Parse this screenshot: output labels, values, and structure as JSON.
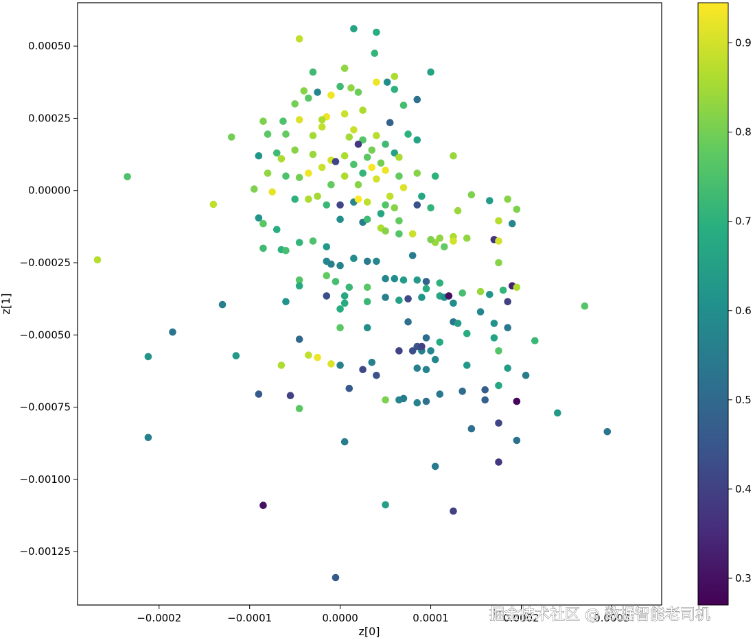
{
  "chart_data": {
    "type": "scatter",
    "xlabel": "z[0]",
    "ylabel": "z[1]",
    "xlim": [
      -0.00029,
      0.000355
    ],
    "ylim": [
      -0.001435,
      0.00065
    ],
    "xticks": [
      {
        "value": -0.0002,
        "label": "−0.0002"
      },
      {
        "value": -0.0001,
        "label": "−0.0001"
      },
      {
        "value": 0.0,
        "label": "0.0000"
      },
      {
        "value": 0.0001,
        "label": "0.0001"
      },
      {
        "value": 0.0002,
        "label": "0.0002"
      },
      {
        "value": 0.0003,
        "label": "0.0003"
      }
    ],
    "yticks": [
      {
        "value": 0.0005,
        "label": "0.00050"
      },
      {
        "value": 0.00025,
        "label": "0.00025"
      },
      {
        "value": 0.0,
        "label": "0.00000"
      },
      {
        "value": -0.00025,
        "label": "−0.00025"
      },
      {
        "value": -0.0005,
        "label": "−0.00050"
      },
      {
        "value": -0.00075,
        "label": "−0.00075"
      },
      {
        "value": -0.001,
        "label": "−0.00100"
      },
      {
        "value": -0.00125,
        "label": "−0.00125"
      }
    ],
    "colorbar": {
      "colormap": "viridis",
      "range": [
        0.27,
        0.945
      ],
      "ticks": [
        {
          "value": 0.3,
          "label": "0.3"
        },
        {
          "value": 0.4,
          "label": "0.4"
        },
        {
          "value": 0.5,
          "label": "0.5"
        },
        {
          "value": 0.6,
          "label": "0.6"
        },
        {
          "value": 0.7,
          "label": "0.7"
        },
        {
          "value": 0.8,
          "label": "0.8"
        },
        {
          "value": 0.9,
          "label": "0.9"
        }
      ]
    },
    "grid": false,
    "legend": "none",
    "points": [
      [
        1.5e-05,
        0.00056,
        0.66
      ],
      [
        4e-05,
        0.000548,
        0.69
      ],
      [
        -4.5e-05,
        0.000525,
        0.88
      ],
      [
        3.8e-05,
        0.000475,
        0.71
      ],
      [
        0.0001,
        0.00041,
        0.66
      ],
      [
        -3e-05,
        0.00041,
        0.73
      ],
      [
        5e-06,
        0.000423,
        0.83
      ],
      [
        6e-05,
        0.000395,
        0.86
      ],
      [
        5.2e-05,
        0.000375,
        0.6
      ],
      [
        4e-05,
        0.000375,
        0.93
      ],
      [
        1.2e-05,
        0.000355,
        0.83
      ],
      [
        2e-05,
        0.00034,
        0.79
      ],
      [
        0.0,
        0.00036,
        0.73
      ],
      [
        -1e-05,
        0.00033,
        0.93
      ],
      [
        6e-05,
        0.00035,
        0.7
      ],
      [
        8.5e-05,
        0.000315,
        0.52
      ],
      [
        -2.5e-05,
        0.00034,
        0.58
      ],
      [
        -4e-05,
        0.000345,
        0.82
      ],
      [
        -3.5e-05,
        0.00032,
        0.77
      ],
      [
        -5e-05,
        0.0003,
        0.8
      ],
      [
        7e-05,
        0.000295,
        0.74
      ],
      [
        2.5e-05,
        0.000278,
        0.86
      ],
      [
        5e-06,
        0.000265,
        0.89
      ],
      [
        -1.5e-05,
        0.000255,
        0.93
      ],
      [
        -2e-05,
        0.000245,
        0.86
      ],
      [
        5.5e-05,
        0.000235,
        0.48
      ],
      [
        -4.5e-05,
        0.000245,
        0.91
      ],
      [
        -6.3e-05,
        0.00024,
        0.75
      ],
      [
        -8.5e-05,
        0.00024,
        0.81
      ],
      [
        -0.00012,
        0.000185,
        0.8
      ],
      [
        -8e-05,
        0.000195,
        0.77
      ],
      [
        -6e-05,
        0.000195,
        0.78
      ],
      [
        1e-05,
        0.000185,
        0.85
      ],
      [
        2.5e-05,
        0.000175,
        0.76
      ],
      [
        4e-05,
        0.00019,
        0.87
      ],
      [
        2e-05,
        0.00016,
        0.38
      ],
      [
        7.5e-05,
        0.000195,
        0.7
      ],
      [
        8.5e-05,
        0.000175,
        0.66
      ],
      [
        5e-05,
        0.00016,
        0.73
      ],
      [
        -9e-05,
        0.00012,
        0.62
      ],
      [
        -7e-05,
        0.00013,
        0.73
      ],
      [
        -5e-05,
        0.00014,
        0.82
      ],
      [
        -3e-05,
        0.000125,
        0.84
      ],
      [
        -1e-05,
        0.000105,
        0.9
      ],
      [
        5e-06,
        0.00012,
        0.86
      ],
      [
        3e-05,
        0.000115,
        0.77
      ],
      [
        6e-05,
        0.00013,
        0.65
      ],
      [
        6.5e-05,
        0.000115,
        0.86
      ],
      [
        0.000125,
        0.00012,
        0.84
      ],
      [
        -8e-05,
        6e-05,
        0.83
      ],
      [
        -6e-05,
        5e-05,
        0.75
      ],
      [
        -4.5e-05,
        4.5e-05,
        0.8
      ],
      [
        -3.5e-05,
        6e-05,
        0.93
      ],
      [
        -2e-05,
        8e-05,
        0.89
      ],
      [
        -5e-06,
        0.0001,
        0.41
      ],
      [
        1.5e-05,
        9e-05,
        0.75
      ],
      [
        3.5e-05,
        8e-05,
        0.94
      ],
      [
        4.5e-05,
        9.5e-05,
        0.8
      ],
      [
        8.5e-05,
        6e-05,
        0.82
      ],
      [
        0.000105,
        5e-05,
        0.7
      ],
      [
        -0.000235,
        4.8e-05,
        0.75
      ],
      [
        -0.00014,
        -4.8e-05,
        0.88
      ],
      [
        -0.000268,
        -0.00024,
        0.87
      ],
      [
        -9.5e-05,
        5e-06,
        0.81
      ],
      [
        -7.5e-05,
        -5e-06,
        0.92
      ],
      [
        -5e-05,
        -3e-05,
        0.7
      ],
      [
        -3.5e-05,
        -3e-05,
        0.86
      ],
      [
        -1.5e-05,
        -5e-05,
        0.72
      ],
      [
        0.0,
        -5e-05,
        0.41
      ],
      [
        1.5e-05,
        -4e-05,
        0.58
      ],
      [
        2e-05,
        -3e-05,
        0.95
      ],
      [
        3e-05,
        -4e-05,
        0.88
      ],
      [
        5e-05,
        -5e-05,
        0.76
      ],
      [
        6e-05,
        -6e-05,
        0.82
      ],
      [
        8.5e-05,
        -5e-05,
        0.44
      ],
      [
        0.0001,
        -6e-05,
        0.71
      ],
      [
        0.00013,
        -7e-05,
        0.84
      ],
      [
        0.000145,
        -1.5e-05,
        0.81
      ],
      [
        0.000165,
        -3.5e-05,
        0.64
      ],
      [
        0.000185,
        -3e-05,
        0.82
      ],
      [
        0.000175,
        -0.000105,
        0.87
      ],
      [
        0.00019,
        -0.000115,
        0.58
      ],
      [
        0.000195,
        -6.5e-05,
        0.81
      ],
      [
        -9e-05,
        -9.5e-05,
        0.62
      ],
      [
        -8.5e-05,
        -0.000115,
        0.77
      ],
      [
        -7e-05,
        -0.000135,
        0.69
      ],
      [
        -4.5e-05,
        -0.00018,
        0.71
      ],
      [
        -3e-05,
        -0.000175,
        0.75
      ],
      [
        -1.5e-05,
        -0.000195,
        0.63
      ],
      [
        0.0,
        -0.0001,
        0.6
      ],
      [
        2.5e-05,
        -0.00011,
        0.55
      ],
      [
        4.5e-05,
        -0.00013,
        0.86
      ],
      [
        6.5e-05,
        -0.00015,
        0.76
      ],
      [
        0.00011,
        -0.000165,
        0.83
      ],
      [
        0.000125,
        -0.00016,
        0.86
      ],
      [
        0.00014,
        -0.000165,
        0.83
      ],
      [
        0.00017,
        -0.00017,
        0.37
      ],
      [
        0.000175,
        -0.000175,
        0.9
      ],
      [
        -8.5e-05,
        -0.0002,
        0.73
      ],
      [
        -6.5e-05,
        -0.000205,
        0.7
      ],
      [
        -6e-05,
        -0.000208,
        0.74
      ],
      [
        -1.5e-05,
        -0.000245,
        0.58
      ],
      [
        -1e-05,
        -0.000255,
        0.56
      ],
      [
        0.0,
        -0.00026,
        0.57
      ],
      [
        1.5e-05,
        -0.000235,
        0.6
      ],
      [
        3e-05,
        -0.000245,
        0.55
      ],
      [
        4e-05,
        -0.000245,
        0.58
      ],
      [
        8e-05,
        -0.000225,
        0.55
      ],
      [
        0.000175,
        -0.00025,
        0.82
      ],
      [
        -4.5e-05,
        -0.00031,
        0.76
      ],
      [
        -1.5e-05,
        -0.000295,
        0.78
      ],
      [
        -5e-06,
        -0.000315,
        0.74
      ],
      [
        1e-05,
        -0.000335,
        0.72
      ],
      [
        3e-05,
        -0.000335,
        0.77
      ],
      [
        5e-05,
        -0.000305,
        0.58
      ],
      [
        6e-05,
        -0.000305,
        0.6
      ],
      [
        7e-05,
        -0.00031,
        0.64
      ],
      [
        8.5e-05,
        -0.00031,
        0.63
      ],
      [
        9.5e-05,
        -0.000315,
        0.49
      ],
      [
        0.00011,
        -0.00032,
        0.7
      ],
      [
        9.5e-05,
        -0.00034,
        0.69
      ],
      [
        0.00011,
        -0.000365,
        0.67
      ],
      [
        0.000115,
        -0.00037,
        0.61
      ],
      [
        0.00012,
        -0.000365,
        0.3
      ],
      [
        0.000135,
        -0.000355,
        0.74
      ],
      [
        0.000155,
        -0.00035,
        0.84
      ],
      [
        0.000165,
        -0.00036,
        0.62
      ],
      [
        0.00018,
        -0.000345,
        0.71
      ],
      [
        0.00019,
        -0.00033,
        0.33
      ],
      [
        0.000195,
        -0.000335,
        0.86
      ],
      [
        -4.5e-05,
        -0.00033,
        0.68
      ],
      [
        -1.5e-05,
        -0.000365,
        0.43
      ],
      [
        5e-06,
        -0.000365,
        0.67
      ],
      [
        5e-06,
        -0.00039,
        0.68
      ],
      [
        3e-05,
        -0.000385,
        0.72
      ],
      [
        5e-05,
        -0.00037,
        0.56
      ],
      [
        6.5e-05,
        -0.00038,
        0.65
      ],
      [
        7.5e-05,
        -0.000375,
        0.42
      ],
      [
        9e-05,
        -0.00037,
        0.62
      ],
      [
        0.000125,
        -0.00039,
        0.6
      ],
      [
        0.000185,
        -0.000385,
        0.4
      ],
      [
        -0.00013,
        -0.000395,
        0.56
      ],
      [
        -6e-05,
        -0.000385,
        0.61
      ],
      [
        0.0,
        -0.00041,
        0.69
      ],
      [
        0.000155,
        -0.00042,
        0.58
      ],
      [
        0.000125,
        -0.000455,
        0.53
      ],
      [
        0.00013,
        -0.00046,
        0.64
      ],
      [
        7.5e-05,
        -0.000455,
        0.52
      ],
      [
        0.0,
        -0.000475,
        0.77
      ],
      [
        3e-05,
        -0.000475,
        0.6
      ],
      [
        0.00017,
        -0.00046,
        0.61
      ],
      [
        0.000185,
        -0.000475,
        0.54
      ],
      [
        -4.5e-05,
        -0.000515,
        0.5
      ],
      [
        -0.000185,
        -0.00049,
        0.53
      ],
      [
        0.00017,
        -0.00051,
        0.66
      ],
      [
        0.000215,
        -0.00052,
        0.72
      ],
      [
        0.00014,
        -0.000495,
        0.69
      ],
      [
        0.00011,
        -0.000525,
        0.68
      ],
      [
        0.0001,
        -0.000555,
        0.58
      ],
      [
        9e-05,
        -0.000555,
        0.56
      ],
      [
        8e-05,
        -0.000555,
        0.43
      ],
      [
        8.5e-05,
        -0.00054,
        0.45
      ],
      [
        9e-05,
        -0.00054,
        0.4
      ],
      [
        9.5e-05,
        -0.00051,
        0.51
      ],
      [
        0.000175,
        -0.000555,
        0.76
      ],
      [
        -3.5e-05,
        -0.00057,
        0.88
      ],
      [
        -2.5e-05,
        -0.000578,
        0.93
      ],
      [
        -1e-05,
        -0.0006,
        0.91
      ],
      [
        0.0,
        -0.000605,
        0.56
      ],
      [
        3.5e-05,
        -0.000595,
        0.56
      ],
      [
        6.5e-05,
        -0.000555,
        0.4
      ],
      [
        8.5e-05,
        -0.000615,
        0.56
      ],
      [
        9.5e-05,
        -0.00062,
        0.57
      ],
      [
        0.000105,
        -0.000585,
        0.58
      ],
      [
        0.00014,
        -0.000605,
        0.63
      ],
      [
        0.000185,
        -0.000615,
        0.64
      ],
      [
        0.000205,
        -0.00064,
        0.55
      ],
      [
        -0.000212,
        -0.000575,
        0.62
      ],
      [
        -0.000115,
        -0.000572,
        0.63
      ],
      [
        -6.5e-05,
        -0.000605,
        0.86
      ],
      [
        2.5e-05,
        -0.00062,
        0.42
      ],
      [
        4e-05,
        -0.00064,
        0.44
      ],
      [
        -9e-05,
        -0.000705,
        0.46
      ],
      [
        -5.5e-05,
        -0.00071,
        0.4
      ],
      [
        -4.5e-05,
        -0.000755,
        0.77
      ],
      [
        1e-05,
        -0.000685,
        0.46
      ],
      [
        5e-05,
        -0.000725,
        0.81
      ],
      [
        6.5e-05,
        -0.000725,
        0.58
      ],
      [
        7e-05,
        -0.00072,
        0.55
      ],
      [
        8.5e-05,
        -0.000735,
        0.57
      ],
      [
        9.5e-05,
        -0.00073,
        0.52
      ],
      [
        0.00011,
        -0.000705,
        0.54
      ],
      [
        0.000135,
        -0.000695,
        0.51
      ],
      [
        0.00016,
        -0.00069,
        0.47
      ],
      [
        0.00016,
        -0.000725,
        0.48
      ],
      [
        0.000175,
        -0.000675,
        0.67
      ],
      [
        0.000195,
        -0.00073,
        0.28
      ],
      [
        0.00024,
        -0.00077,
        0.63
      ],
      [
        -0.000212,
        -0.000855,
        0.56
      ],
      [
        5e-06,
        -0.00087,
        0.55
      ],
      [
        0.000105,
        -0.000955,
        0.55
      ],
      [
        0.000145,
        -0.000825,
        0.52
      ],
      [
        0.000175,
        -0.000805,
        0.41
      ],
      [
        0.000195,
        -0.000865,
        0.52
      ],
      [
        0.000295,
        -0.000835,
        0.53
      ],
      [
        0.00027,
        -0.0004,
        0.76
      ],
      [
        0.000175,
        -0.00094,
        0.38
      ],
      [
        -8.5e-05,
        -0.00109,
        0.3
      ],
      [
        5e-05,
        -0.001088,
        0.65
      ],
      [
        0.000125,
        -0.00111,
        0.4
      ],
      [
        -5e-06,
        -0.00134,
        0.46
      ],
      [
        6.5e-05,
        -0.000105,
        0.78
      ],
      [
        4.5e-05,
        -8e-05,
        0.67
      ],
      [
        -1e-05,
        2e-05,
        0.78
      ],
      [
        2e-05,
        2e-05,
        0.82
      ],
      [
        4e-05,
        4e-05,
        0.9
      ],
      [
        7e-05,
        1e-05,
        0.91
      ],
      [
        9e-05,
        -2e-05,
        0.67
      ],
      [
        2.5e-05,
        6e-05,
        0.71
      ],
      [
        5e-06,
        5e-05,
        0.86
      ],
      [
        -2.5e-05,
        -2e-05,
        0.85
      ],
      [
        5.5e-05,
        -2e-05,
        0.88
      ],
      [
        3e-05,
        -0.0001,
        0.73
      ],
      [
        5e-05,
        -0.00014,
        0.82
      ],
      [
        8e-05,
        -0.00015,
        0.89
      ],
      [
        0.000105,
        -0.00018,
        0.84
      ],
      [
        0.0001,
        -0.00017,
        0.81
      ],
      [
        0.000115,
        -0.000195,
        0.78
      ],
      [
        0.000125,
        -0.000175,
        0.9
      ],
      [
        -3e-05,
        0.00019,
        0.85
      ],
      [
        -2e-05,
        0.00022,
        0.88
      ],
      [
        1.5e-05,
        0.00021,
        0.89
      ],
      [
        3.5e-05,
        0.00014,
        0.8
      ],
      [
        -6.5e-05,
        0.00011,
        0.86
      ],
      [
        5e-05,
        7e-05,
        0.93
      ],
      [
        6.5e-05,
        5e-05,
        0.78
      ]
    ]
  },
  "watermark": "掘金技术社区 @ 数据智能老司机"
}
